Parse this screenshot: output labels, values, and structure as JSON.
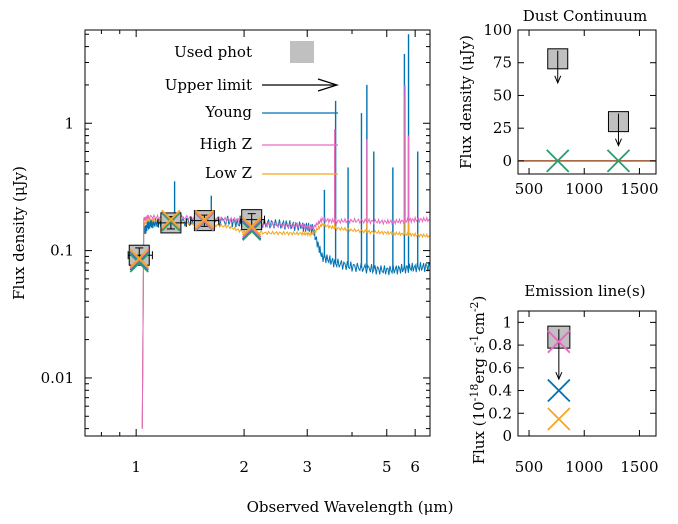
{
  "main_chart": {
    "type": "line",
    "xlabel": "Observed Wavelength (μm)",
    "ylabel": "Flux density (μJy)",
    "x_scale": "log",
    "y_scale": "log",
    "xlim": [
      0.72,
      6.6
    ],
    "ylim": [
      0.0035,
      5.4
    ],
    "x_ticks": [
      {
        "value": 1,
        "label": "1"
      },
      {
        "value": 2,
        "label": "2"
      },
      {
        "value": 3,
        "label": "3"
      },
      {
        "value": 5,
        "label": "5"
      },
      {
        "value": 6,
        "label": "6"
      }
    ],
    "y_ticks": [
      {
        "value": 0.01,
        "label": "0.01"
      },
      {
        "value": 0.1,
        "label": "0.1"
      },
      {
        "value": 1,
        "label": "1"
      }
    ],
    "legend": {
      "used_phot": "Used phot",
      "upper_limit": "Upper limit",
      "young": "Young",
      "high_z": "High Z",
      "low_z": "Low Z"
    },
    "colors": {
      "young": "#0072b2",
      "high_z": "#e66ac2",
      "low_z": "#f5a623",
      "green": "#2a9d6e",
      "phot_fill": "#c0c0c0"
    }
  },
  "chart_data": [
    {
      "type": "scatter",
      "name": "Used phot",
      "x": [
        1.02,
        1.25,
        1.55,
        2.1
      ],
      "y": [
        0.092,
        0.165,
        0.172,
        0.175
      ],
      "xerr": [
        [
          0.95,
          1.11
        ],
        [
          1.15,
          1.38
        ],
        [
          1.42,
          1.7
        ],
        [
          1.95,
          2.28
        ]
      ],
      "yerr": [
        [
          0.08,
          0.105
        ],
        [
          0.148,
          0.185
        ],
        [
          0.155,
          0.19
        ],
        [
          0.157,
          0.195
        ]
      ]
    },
    {
      "type": "scatter",
      "name": "model photometry",
      "x": [
        1.02,
        1.25,
        1.55,
        2.1
      ],
      "y_young": [
        0.083,
        0.172,
        0.172,
        0.145
      ],
      "y_green": [
        0.08,
        0.168,
        0.168,
        0.142
      ],
      "y_high_z": [
        0.085,
        0.175,
        0.17,
        0.15
      ],
      "y_low_z": [
        0.087,
        0.176,
        0.176,
        0.155
      ]
    },
    {
      "type": "line",
      "name": "Young",
      "x": [
        1.04,
        1.05,
        1.08,
        1.12,
        1.2,
        1.3,
        1.5,
        1.8,
        2.0,
        2.3,
        2.6,
        2.9,
        3.1,
        3.3,
        3.6,
        4.0,
        4.5,
        5.0,
        5.5,
        6.0,
        6.6
      ],
      "y": [
        0.004,
        0.14,
        0.16,
        0.165,
        0.168,
        0.17,
        0.17,
        0.172,
        0.16,
        0.165,
        0.16,
        0.155,
        0.15,
        0.09,
        0.08,
        0.075,
        0.072,
        0.07,
        0.072,
        0.074,
        0.075
      ],
      "peaks": [
        {
          "x": 1.28,
          "y": 0.35
        },
        {
          "x": 1.62,
          "y": 0.27
        },
        {
          "x": 3.35,
          "y": 0.3
        },
        {
          "x": 3.6,
          "y": 1.5
        },
        {
          "x": 3.9,
          "y": 0.45
        },
        {
          "x": 4.25,
          "y": 1.2
        },
        {
          "x": 4.4,
          "y": 2.0
        },
        {
          "x": 4.6,
          "y": 0.6
        },
        {
          "x": 5.2,
          "y": 0.45
        },
        {
          "x": 5.6,
          "y": 3.5
        },
        {
          "x": 5.75,
          "y": 5.0
        },
        {
          "x": 6.1,
          "y": 0.6
        }
      ]
    },
    {
      "type": "line",
      "name": "High Z",
      "x": [
        1.04,
        1.05,
        1.08,
        1.2,
        1.4,
        1.6,
        1.8,
        2.0,
        2.3,
        2.6,
        2.9,
        3.1,
        3.3,
        3.6,
        4.0,
        4.5,
        5.0,
        5.5,
        6.0,
        6.6
      ],
      "y": [
        0.004,
        0.175,
        0.185,
        0.18,
        0.182,
        0.178,
        0.175,
        0.172,
        0.16,
        0.158,
        0.157,
        0.15,
        0.175,
        0.17,
        0.172,
        0.17,
        0.168,
        0.17,
        0.175,
        0.175
      ],
      "peaks": [
        {
          "x": 3.58,
          "y": 0.9
        },
        {
          "x": 4.4,
          "y": 0.75
        },
        {
          "x": 5.62,
          "y": 2.0
        },
        {
          "x": 5.75,
          "y": 0.8
        }
      ]
    },
    {
      "type": "line",
      "name": "Low Z",
      "x": [
        1.04,
        1.05,
        1.08,
        1.2,
        1.4,
        1.6,
        1.8,
        2.0,
        2.3,
        2.6,
        2.9,
        3.1,
        3.3,
        3.6,
        4.0,
        4.5,
        5.0,
        5.5,
        6.0,
        6.6
      ],
      "y": [
        0.004,
        0.16,
        0.175,
        0.17,
        0.165,
        0.16,
        0.155,
        0.14,
        0.138,
        0.137,
        0.136,
        0.135,
        0.16,
        0.15,
        0.145,
        0.14,
        0.138,
        0.135,
        0.133,
        0.13
      ],
      "peaks": [
        {
          "x": 3.58,
          "y": 0.65
        },
        {
          "x": 4.4,
          "y": 0.5
        },
        {
          "x": 5.62,
          "y": 1.6
        },
        {
          "x": 5.75,
          "y": 0.65
        }
      ]
    },
    {
      "type": "scatter",
      "title": "Dust Continuum",
      "ylabel": "Flux density (μJy)",
      "xlim": [
        400,
        1650
      ],
      "ylim": [
        -10,
        100
      ],
      "x_ticks": [
        500,
        1000,
        1500
      ],
      "y_ticks": [
        0,
        25,
        50,
        75,
        100
      ],
      "zero_line_color": "#a0522d",
      "points": [
        {
          "x": 760,
          "y": 78,
          "kind": "upper_limit"
        },
        {
          "x": 1310,
          "y": 30,
          "kind": "upper_limit"
        }
      ],
      "models": [
        {
          "x": 760,
          "y": 0,
          "color": "#2a9d6e"
        },
        {
          "x": 1310,
          "y": 0,
          "color": "#2a9d6e"
        }
      ]
    },
    {
      "type": "scatter",
      "title": "Emission line(s)",
      "ylabel": "Flux (10⁻¹⁸erg s⁻¹cm⁻²)",
      "xlim": [
        400,
        1650
      ],
      "ylim": [
        0,
        1.1
      ],
      "x_ticks": [
        500,
        1000,
        1500
      ],
      "y_ticks": [
        0,
        0.2,
        0.4,
        0.6,
        0.8,
        1
      ],
      "points": [
        {
          "x": 770,
          "y": 0.87,
          "kind": "upper_limit"
        }
      ],
      "models": [
        {
          "x": 770,
          "y": 0.83,
          "color": "#e66ac2"
        },
        {
          "x": 770,
          "y": 0.4,
          "color": "#0072b2"
        },
        {
          "x": 770,
          "y": 0.15,
          "color": "#f5a623"
        }
      ]
    }
  ],
  "panels": {
    "dust_title": "Dust Continuum",
    "dust_ylabel": "Flux density (μJy)",
    "emission_title": "Emission line(s)",
    "emission_ylabel_prefix": "Flux (10",
    "emission_ylabel_exp1": "-18",
    "emission_ylabel_mid": "erg s",
    "emission_ylabel_exp2": "-1",
    "emission_ylabel_mid2": "cm",
    "emission_ylabel_exp3": "-2",
    "emission_ylabel_suffix": ")"
  }
}
